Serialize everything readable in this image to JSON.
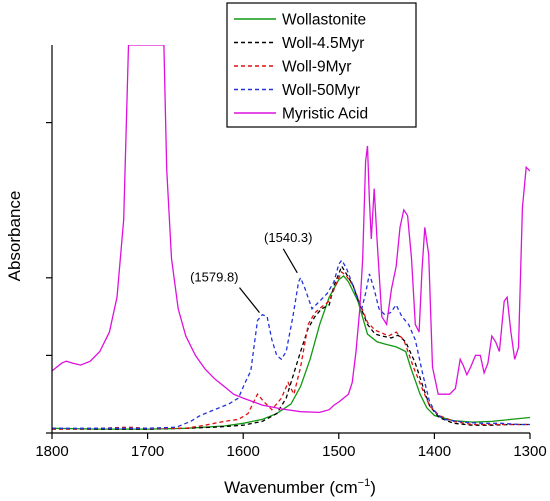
{
  "chart_data": {
    "type": "line",
    "xlabel": "Wavenumber (cm",
    "xlabel_sup": "−1",
    "xlabel_close": ")",
    "ylabel": "Absorbance",
    "x_reversed": true,
    "xlim": [
      1800,
      1300
    ],
    "ylim": [
      0,
      1
    ],
    "x_ticks": [
      1800,
      1700,
      1600,
      1500,
      1400,
      1300
    ],
    "y_ticks_unlabeled": [
      0,
      0.2,
      0.4,
      0.8
    ],
    "grid": false,
    "legend_position": "top-center",
    "series": [
      {
        "name": "Wollastonite",
        "color": "#119911",
        "dash": "solid",
        "points": [
          [
            1800,
            0.012
          ],
          [
            1750,
            0.01
          ],
          [
            1700,
            0.01
          ],
          [
            1660,
            0.012
          ],
          [
            1620,
            0.018
          ],
          [
            1600,
            0.025
          ],
          [
            1580,
            0.035
          ],
          [
            1565,
            0.05
          ],
          [
            1550,
            0.075
          ],
          [
            1540,
            0.12
          ],
          [
            1530,
            0.19
          ],
          [
            1520,
            0.28
          ],
          [
            1510,
            0.35
          ],
          [
            1500,
            0.395
          ],
          [
            1495,
            0.405
          ],
          [
            1490,
            0.39
          ],
          [
            1480,
            0.34
          ],
          [
            1470,
            0.255
          ],
          [
            1460,
            0.235
          ],
          [
            1450,
            0.228
          ],
          [
            1440,
            0.222
          ],
          [
            1430,
            0.21
          ],
          [
            1425,
            0.17
          ],
          [
            1415,
            0.1
          ],
          [
            1408,
            0.065
          ],
          [
            1400,
            0.045
          ],
          [
            1380,
            0.032
          ],
          [
            1360,
            0.028
          ],
          [
            1340,
            0.03
          ],
          [
            1320,
            0.035
          ],
          [
            1300,
            0.04
          ]
        ]
      },
      {
        "name": "Woll-4.5Myr",
        "color": "#000000",
        "dash": "4,3",
        "points": [
          [
            1800,
            0.01
          ],
          [
            1750,
            0.01
          ],
          [
            1700,
            0.01
          ],
          [
            1660,
            0.012
          ],
          [
            1630,
            0.015
          ],
          [
            1600,
            0.02
          ],
          [
            1580,
            0.03
          ],
          [
            1565,
            0.05
          ],
          [
            1555,
            0.09
          ],
          [
            1545,
            0.17
          ],
          [
            1540,
            0.21
          ],
          [
            1532,
            0.27
          ],
          [
            1525,
            0.3
          ],
          [
            1518,
            0.32
          ],
          [
            1510,
            0.33
          ],
          [
            1505,
            0.38
          ],
          [
            1500,
            0.41
          ],
          [
            1497,
            0.43
          ],
          [
            1492,
            0.41
          ],
          [
            1485,
            0.38
          ],
          [
            1478,
            0.33
          ],
          [
            1470,
            0.28
          ],
          [
            1462,
            0.255
          ],
          [
            1455,
            0.25
          ],
          [
            1445,
            0.245
          ],
          [
            1438,
            0.252
          ],
          [
            1430,
            0.235
          ],
          [
            1420,
            0.18
          ],
          [
            1412,
            0.12
          ],
          [
            1405,
            0.07
          ],
          [
            1395,
            0.04
          ],
          [
            1380,
            0.025
          ],
          [
            1360,
            0.02
          ],
          [
            1340,
            0.02
          ],
          [
            1320,
            0.022
          ],
          [
            1300,
            0.022
          ]
        ]
      },
      {
        "name": "Woll-9Myr",
        "color": "#dd1111",
        "dash": "4,3",
        "points": [
          [
            1800,
            0.01
          ],
          [
            1750,
            0.012
          ],
          [
            1720,
            0.015
          ],
          [
            1700,
            0.012
          ],
          [
            1680,
            0.012
          ],
          [
            1660,
            0.012
          ],
          [
            1640,
            0.02
          ],
          [
            1620,
            0.03
          ],
          [
            1605,
            0.035
          ],
          [
            1595,
            0.05
          ],
          [
            1585,
            0.1
          ],
          [
            1578,
            0.08
          ],
          [
            1570,
            0.06
          ],
          [
            1560,
            0.09
          ],
          [
            1553,
            0.13
          ],
          [
            1547,
            0.1
          ],
          [
            1540,
            0.17
          ],
          [
            1532,
            0.28
          ],
          [
            1525,
            0.31
          ],
          [
            1518,
            0.325
          ],
          [
            1510,
            0.34
          ],
          [
            1505,
            0.37
          ],
          [
            1500,
            0.4
          ],
          [
            1497,
            0.415
          ],
          [
            1492,
            0.405
          ],
          [
            1485,
            0.38
          ],
          [
            1478,
            0.335
          ],
          [
            1470,
            0.285
          ],
          [
            1462,
            0.265
          ],
          [
            1455,
            0.258
          ],
          [
            1448,
            0.25
          ],
          [
            1440,
            0.26
          ],
          [
            1432,
            0.24
          ],
          [
            1422,
            0.17
          ],
          [
            1412,
            0.11
          ],
          [
            1405,
            0.07
          ],
          [
            1395,
            0.045
          ],
          [
            1380,
            0.03
          ],
          [
            1360,
            0.022
          ],
          [
            1340,
            0.022
          ],
          [
            1320,
            0.022
          ],
          [
            1300,
            0.022
          ]
        ]
      },
      {
        "name": "Woll-50Myr",
        "color": "#2233dd",
        "dash": "4,3",
        "points": [
          [
            1800,
            0.012
          ],
          [
            1750,
            0.012
          ],
          [
            1700,
            0.012
          ],
          [
            1670,
            0.015
          ],
          [
            1655,
            0.03
          ],
          [
            1645,
            0.045
          ],
          [
            1630,
            0.06
          ],
          [
            1615,
            0.075
          ],
          [
            1605,
            0.09
          ],
          [
            1598,
            0.13
          ],
          [
            1592,
            0.16
          ],
          [
            1585,
            0.29
          ],
          [
            1580,
            0.305
          ],
          [
            1575,
            0.3
          ],
          [
            1570,
            0.24
          ],
          [
            1565,
            0.2
          ],
          [
            1560,
            0.19
          ],
          [
            1555,
            0.21
          ],
          [
            1548,
            0.3
          ],
          [
            1542,
            0.39
          ],
          [
            1540,
            0.4
          ],
          [
            1535,
            0.37
          ],
          [
            1528,
            0.32
          ],
          [
            1520,
            0.34
          ],
          [
            1512,
            0.36
          ],
          [
            1505,
            0.39
          ],
          [
            1500,
            0.435
          ],
          [
            1497,
            0.445
          ],
          [
            1492,
            0.425
          ],
          [
            1486,
            0.385
          ],
          [
            1480,
            0.345
          ],
          [
            1476,
            0.32
          ],
          [
            1472,
            0.36
          ],
          [
            1468,
            0.41
          ],
          [
            1463,
            0.37
          ],
          [
            1458,
            0.32
          ],
          [
            1452,
            0.305
          ],
          [
            1446,
            0.31
          ],
          [
            1440,
            0.33
          ],
          [
            1434,
            0.3
          ],
          [
            1427,
            0.28
          ],
          [
            1420,
            0.24
          ],
          [
            1412,
            0.15
          ],
          [
            1405,
            0.08
          ],
          [
            1398,
            0.05
          ],
          [
            1390,
            0.035
          ],
          [
            1370,
            0.028
          ],
          [
            1350,
            0.025
          ],
          [
            1330,
            0.025
          ],
          [
            1310,
            0.022
          ],
          [
            1300,
            0.022
          ]
        ]
      },
      {
        "name": "Myristic Acid",
        "color": "#dd11dd",
        "dash": "solid",
        "points": [
          [
            1800,
            0.16
          ],
          [
            1790,
            0.18
          ],
          [
            1785,
            0.185
          ],
          [
            1778,
            0.18
          ],
          [
            1770,
            0.175
          ],
          [
            1760,
            0.185
          ],
          [
            1750,
            0.21
          ],
          [
            1740,
            0.26
          ],
          [
            1732,
            0.35
          ],
          [
            1725,
            0.55
          ],
          [
            1720,
            1.0
          ],
          [
            1712,
            1.0
          ],
          [
            1705,
            1.0
          ],
          [
            1700,
            1.0
          ],
          [
            1695,
            1.0
          ],
          [
            1690,
            1.0
          ],
          [
            1683,
            1.0
          ],
          [
            1680,
            0.68
          ],
          [
            1675,
            0.45
          ],
          [
            1668,
            0.32
          ],
          [
            1660,
            0.25
          ],
          [
            1650,
            0.2
          ],
          [
            1640,
            0.165
          ],
          [
            1630,
            0.14
          ],
          [
            1620,
            0.12
          ],
          [
            1610,
            0.1
          ],
          [
            1600,
            0.09
          ],
          [
            1580,
            0.072
          ],
          [
            1560,
            0.062
          ],
          [
            1540,
            0.055
          ],
          [
            1520,
            0.053
          ],
          [
            1510,
            0.06
          ],
          [
            1505,
            0.072
          ],
          [
            1500,
            0.08
          ],
          [
            1495,
            0.09
          ],
          [
            1490,
            0.1
          ],
          [
            1486,
            0.13
          ],
          [
            1482,
            0.21
          ],
          [
            1478,
            0.32
          ],
          [
            1475,
            0.45
          ],
          [
            1472,
            0.7
          ],
          [
            1470,
            0.74
          ],
          [
            1468,
            0.6
          ],
          [
            1466,
            0.5
          ],
          [
            1463,
            0.63
          ],
          [
            1460,
            0.5
          ],
          [
            1455,
            0.3
          ],
          [
            1450,
            0.28
          ],
          [
            1445,
            0.37
          ],
          [
            1440,
            0.43
          ],
          [
            1436,
            0.53
          ],
          [
            1432,
            0.575
          ],
          [
            1428,
            0.56
          ],
          [
            1424,
            0.45
          ],
          [
            1420,
            0.28
          ],
          [
            1416,
            0.26
          ],
          [
            1413,
            0.42
          ],
          [
            1410,
            0.53
          ],
          [
            1406,
            0.46
          ],
          [
            1402,
            0.17
          ],
          [
            1396,
            0.1
          ],
          [
            1390,
            0.1
          ],
          [
            1384,
            0.1
          ],
          [
            1378,
            0.115
          ],
          [
            1373,
            0.19
          ],
          [
            1370,
            0.175
          ],
          [
            1366,
            0.15
          ],
          [
            1362,
            0.17
          ],
          [
            1357,
            0.2
          ],
          [
            1352,
            0.2
          ],
          [
            1348,
            0.155
          ],
          [
            1344,
            0.18
          ],
          [
            1340,
            0.25
          ],
          [
            1336,
            0.235
          ],
          [
            1332,
            0.21
          ],
          [
            1327,
            0.34
          ],
          [
            1324,
            0.35
          ],
          [
            1320,
            0.26
          ],
          [
            1316,
            0.19
          ],
          [
            1312,
            0.22
          ],
          [
            1308,
            0.58
          ],
          [
            1304,
            0.685
          ],
          [
            1300,
            0.675
          ]
        ]
      }
    ],
    "annotations": [
      {
        "text": "(1579.8)",
        "x": 1579.8,
        "y": 0.305
      },
      {
        "text": "(1540.3)",
        "x": 1540.3,
        "y": 0.4
      }
    ]
  }
}
